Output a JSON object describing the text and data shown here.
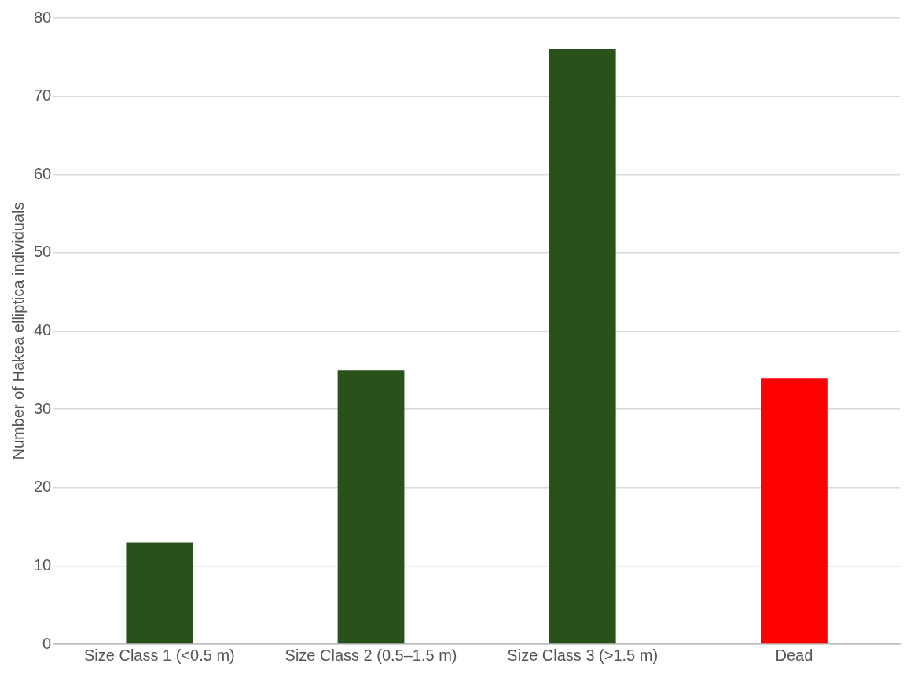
{
  "chart_data": {
    "type": "bar",
    "ylabel": "Number of Hakea elliptica individuals",
    "categories": [
      "Size Class 1 (<0.5 m)",
      "Size Class 2 (0.5–1.5 m)",
      "Size Class 3 (>1.5 m)",
      "Dead"
    ],
    "values": [
      13,
      35,
      76,
      34
    ],
    "colors": [
      "#285219",
      "#285219",
      "#285219",
      "#ff0000"
    ],
    "ylim": [
      0,
      80
    ],
    "yticks": [
      0,
      10,
      20,
      30,
      40,
      50,
      60,
      70,
      80
    ],
    "grid": "y",
    "legend": false
  }
}
